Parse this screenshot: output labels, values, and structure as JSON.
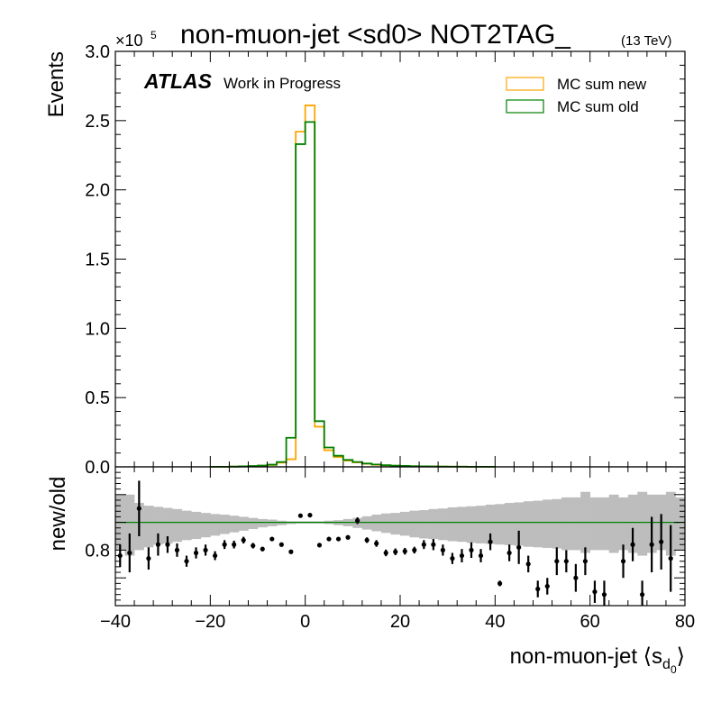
{
  "chart_data": {
    "type": "line",
    "title": "non-muon-jet <sd0> NOT2TAG_",
    "title_suffix": "(13 TeV)",
    "atlas_label": "ATLAS",
    "atlas_sublabel": "Work in Progress",
    "top_panel": {
      "ylabel": "Events",
      "y_multiplier": "×10",
      "y_exponent": "5",
      "ylim": [
        0,
        3.0
      ],
      "yticks": [
        "0.0",
        "0.5",
        "1.0",
        "1.5",
        "2.0",
        "2.5",
        "3.0"
      ],
      "legend_position": "top-right",
      "series": [
        {
          "name": "MC sum new",
          "color": "#ffa500",
          "bins": [
            [
              -20,
              -18,
              0.001
            ],
            [
              -18,
              -16,
              0.001
            ],
            [
              -16,
              -14,
              0.002
            ],
            [
              -14,
              -12,
              0.003
            ],
            [
              -12,
              -10,
              0.005
            ],
            [
              -10,
              -8,
              0.008
            ],
            [
              -8,
              -6,
              0.013
            ],
            [
              -6,
              -4,
              0.03
            ],
            [
              -4,
              -2,
              0.055
            ],
            [
              -2,
              0,
              2.42
            ],
            [
              0,
              2,
              2.61
            ],
            [
              2,
              4,
              0.29
            ],
            [
              4,
              6,
              0.12
            ],
            [
              6,
              8,
              0.07
            ],
            [
              8,
              10,
              0.045
            ],
            [
              10,
              12,
              0.032
            ],
            [
              12,
              14,
              0.022
            ],
            [
              14,
              16,
              0.015
            ],
            [
              16,
              18,
              0.011
            ],
            [
              18,
              20,
              0.008
            ],
            [
              20,
              22,
              0.006
            ],
            [
              22,
              24,
              0.005
            ],
            [
              24,
              26,
              0.004
            ],
            [
              26,
              28,
              0.003
            ],
            [
              28,
              30,
              0.002
            ],
            [
              30,
              34,
              0.0015
            ],
            [
              34,
              40,
              0.001
            ]
          ]
        },
        {
          "name": "MC sum old",
          "color": "#008000",
          "bins": [
            [
              -20,
              -18,
              0.001
            ],
            [
              -18,
              -16,
              0.001
            ],
            [
              -16,
              -14,
              0.002
            ],
            [
              -14,
              -12,
              0.004
            ],
            [
              -12,
              -10,
              0.006
            ],
            [
              -10,
              -8,
              0.01
            ],
            [
              -8,
              -6,
              0.016
            ],
            [
              -6,
              -4,
              0.035
            ],
            [
              -4,
              -2,
              0.21
            ],
            [
              -2,
              0,
              2.33
            ],
            [
              0,
              2,
              2.49
            ],
            [
              2,
              4,
              0.33
            ],
            [
              4,
              6,
              0.14
            ],
            [
              6,
              8,
              0.08
            ],
            [
              8,
              10,
              0.05
            ],
            [
              10,
              12,
              0.035
            ],
            [
              12,
              14,
              0.024
            ],
            [
              14,
              16,
              0.017
            ],
            [
              16,
              18,
              0.012
            ],
            [
              18,
              20,
              0.009
            ],
            [
              20,
              22,
              0.007
            ],
            [
              22,
              24,
              0.005
            ],
            [
              24,
              26,
              0.004
            ],
            [
              26,
              28,
              0.003
            ],
            [
              28,
              30,
              0.002
            ],
            [
              30,
              34,
              0.0015
            ],
            [
              34,
              40,
              0.001
            ]
          ]
        }
      ]
    },
    "ratio_panel": {
      "ylabel": "new/old",
      "ylim": [
        0.7,
        0.95
      ],
      "yticks": [
        "0.8"
      ],
      "reference": 0.85,
      "band": [
        [
          -40,
          -38,
          0.8,
          0.9
        ],
        [
          -38,
          -36,
          0.79,
          0.9
        ],
        [
          -36,
          -34,
          0.8,
          0.885
        ],
        [
          -34,
          -32,
          0.805,
          0.88
        ],
        [
          -32,
          -30,
          0.81,
          0.878
        ],
        [
          -30,
          -28,
          0.812,
          0.876
        ],
        [
          -28,
          -26,
          0.815,
          0.874
        ],
        [
          -26,
          -24,
          0.818,
          0.871
        ],
        [
          -24,
          -22,
          0.82,
          0.869
        ],
        [
          -22,
          -20,
          0.823,
          0.867
        ],
        [
          -20,
          -18,
          0.826,
          0.865
        ],
        [
          -18,
          -16,
          0.829,
          0.864
        ],
        [
          -16,
          -14,
          0.832,
          0.862
        ],
        [
          -14,
          -12,
          0.835,
          0.86
        ],
        [
          -12,
          -10,
          0.838,
          0.858
        ],
        [
          -10,
          -8,
          0.841,
          0.856
        ],
        [
          -8,
          -6,
          0.843,
          0.855
        ],
        [
          -6,
          -4,
          0.845,
          0.853
        ],
        [
          -4,
          -2,
          0.847,
          0.852
        ],
        [
          -2,
          0,
          0.848,
          0.852
        ],
        [
          0,
          2,
          0.848,
          0.852
        ],
        [
          2,
          4,
          0.848,
          0.852
        ],
        [
          4,
          6,
          0.847,
          0.853
        ],
        [
          6,
          8,
          0.845,
          0.854
        ],
        [
          8,
          10,
          0.843,
          0.856
        ],
        [
          10,
          12,
          0.84,
          0.858
        ],
        [
          12,
          14,
          0.837,
          0.861
        ],
        [
          14,
          16,
          0.834,
          0.864
        ],
        [
          16,
          18,
          0.831,
          0.866
        ],
        [
          18,
          20,
          0.828,
          0.867
        ],
        [
          20,
          22,
          0.826,
          0.869
        ],
        [
          22,
          24,
          0.823,
          0.871
        ],
        [
          24,
          26,
          0.821,
          0.872
        ],
        [
          26,
          28,
          0.82,
          0.874
        ],
        [
          28,
          30,
          0.818,
          0.875
        ],
        [
          30,
          32,
          0.816,
          0.877
        ],
        [
          32,
          34,
          0.815,
          0.878
        ],
        [
          34,
          36,
          0.813,
          0.879
        ],
        [
          36,
          38,
          0.812,
          0.88
        ],
        [
          38,
          40,
          0.811,
          0.882
        ],
        [
          40,
          42,
          0.81,
          0.883
        ],
        [
          42,
          44,
          0.809,
          0.885
        ],
        [
          44,
          46,
          0.808,
          0.886
        ],
        [
          46,
          48,
          0.806,
          0.888
        ],
        [
          48,
          50,
          0.805,
          0.889
        ],
        [
          50,
          52,
          0.804,
          0.891
        ],
        [
          52,
          54,
          0.803,
          0.892
        ],
        [
          54,
          56,
          0.8,
          0.895
        ],
        [
          56,
          58,
          0.8,
          0.895
        ],
        [
          58,
          60,
          0.795,
          0.905
        ],
        [
          60,
          62,
          0.8,
          0.895
        ],
        [
          62,
          64,
          0.8,
          0.895
        ],
        [
          64,
          66,
          0.795,
          0.9
        ],
        [
          66,
          68,
          0.8,
          0.895
        ],
        [
          68,
          70,
          0.795,
          0.9
        ],
        [
          70,
          72,
          0.79,
          0.905
        ],
        [
          72,
          74,
          0.795,
          0.9
        ],
        [
          74,
          76,
          0.8,
          0.9
        ],
        [
          76,
          78,
          0.79,
          0.905
        ],
        [
          78,
          80,
          0.8,
          0.895
        ]
      ],
      "points": [
        {
          "x": -39,
          "y": 0.79,
          "err": 0.02
        },
        {
          "x": -37,
          "y": 0.795,
          "err": 0.035
        },
        {
          "x": -35,
          "y": 0.875,
          "err": 0.05
        },
        {
          "x": -33,
          "y": 0.785,
          "err": 0.02
        },
        {
          "x": -31,
          "y": 0.81,
          "err": 0.02
        },
        {
          "x": -29,
          "y": 0.81,
          "err": 0.015
        },
        {
          "x": -27,
          "y": 0.8,
          "err": 0.012
        },
        {
          "x": -25,
          "y": 0.78,
          "err": 0.01
        },
        {
          "x": -23,
          "y": 0.795,
          "err": 0.01
        },
        {
          "x": -21,
          "y": 0.8,
          "err": 0.01
        },
        {
          "x": -19,
          "y": 0.79,
          "err": 0.008
        },
        {
          "x": -17,
          "y": 0.81,
          "err": 0.008
        },
        {
          "x": -15,
          "y": 0.81,
          "err": 0.007
        },
        {
          "x": -13,
          "y": 0.818,
          "err": 0.006
        },
        {
          "x": -11,
          "y": 0.808,
          "err": 0.005
        },
        {
          "x": -9,
          "y": 0.802,
          "err": 0.004
        },
        {
          "x": -7,
          "y": 0.82,
          "err": 0.003
        },
        {
          "x": -5,
          "y": 0.81,
          "err": 0.002
        },
        {
          "x": -3,
          "y": 0.797,
          "err": 0.002
        },
        {
          "x": -1,
          "y": 0.862,
          "err": 0.002
        },
        {
          "x": 1,
          "y": 0.863,
          "err": 0.002
        },
        {
          "x": 3,
          "y": 0.809,
          "err": 0.002
        },
        {
          "x": 5,
          "y": 0.82,
          "err": 0.002
        },
        {
          "x": 7,
          "y": 0.82,
          "err": 0.003
        },
        {
          "x": 9,
          "y": 0.823,
          "err": 0.003
        },
        {
          "x": 11,
          "y": 0.853,
          "err": 0.006
        },
        {
          "x": 13,
          "y": 0.818,
          "err": 0.005
        },
        {
          "x": 15,
          "y": 0.812,
          "err": 0.006
        },
        {
          "x": 17,
          "y": 0.795,
          "err": 0.006
        },
        {
          "x": 19,
          "y": 0.797,
          "err": 0.006
        },
        {
          "x": 21,
          "y": 0.798,
          "err": 0.006
        },
        {
          "x": 23,
          "y": 0.8,
          "err": 0.006
        },
        {
          "x": 25,
          "y": 0.81,
          "err": 0.008
        },
        {
          "x": 27,
          "y": 0.81,
          "err": 0.01
        },
        {
          "x": 29,
          "y": 0.8,
          "err": 0.01
        },
        {
          "x": 31,
          "y": 0.785,
          "err": 0.01
        },
        {
          "x": 33,
          "y": 0.79,
          "err": 0.012
        },
        {
          "x": 35,
          "y": 0.8,
          "err": 0.014
        },
        {
          "x": 37,
          "y": 0.79,
          "err": 0.012
        },
        {
          "x": 39,
          "y": 0.815,
          "err": 0.015
        },
        {
          "x": 41,
          "y": 0.74,
          "err": 0.005
        },
        {
          "x": 43,
          "y": 0.795,
          "err": 0.015
        },
        {
          "x": 45,
          "y": 0.805,
          "err": 0.03
        },
        {
          "x": 47,
          "y": 0.775,
          "err": 0.015
        },
        {
          "x": 49,
          "y": 0.73,
          "err": 0.015
        },
        {
          "x": 51,
          "y": 0.735,
          "err": 0.015
        },
        {
          "x": 53,
          "y": 0.78,
          "err": 0.025
        },
        {
          "x": 55,
          "y": 0.78,
          "err": 0.02
        },
        {
          "x": 57,
          "y": 0.75,
          "err": 0.025
        },
        {
          "x": 59,
          "y": 0.78,
          "err": 0.025
        },
        {
          "x": 61,
          "y": 0.725,
          "err": 0.02
        },
        {
          "x": 63,
          "y": 0.72,
          "err": 0.025
        },
        {
          "x": 67,
          "y": 0.78,
          "err": 0.03
        },
        {
          "x": 69,
          "y": 0.81,
          "err": 0.03
        },
        {
          "x": 71,
          "y": 0.72,
          "err": 0.025
        },
        {
          "x": 73,
          "y": 0.81,
          "err": 0.05
        },
        {
          "x": 75,
          "y": 0.815,
          "err": 0.05
        },
        {
          "x": 77,
          "y": 0.785,
          "err": 0.06
        }
      ]
    },
    "x_axis": {
      "xlim": [
        -40,
        80
      ],
      "xticks": [
        "−40",
        "−20",
        "0",
        "20",
        "40",
        "60",
        "80"
      ],
      "xtick_values": [
        -40,
        -20,
        0,
        20,
        40,
        60,
        80
      ],
      "xlabel": "non-muon-jet ⟨s",
      "xlabel_sub": "d",
      "xlabel_subsub": "0",
      "xlabel_end": "⟩"
    }
  }
}
